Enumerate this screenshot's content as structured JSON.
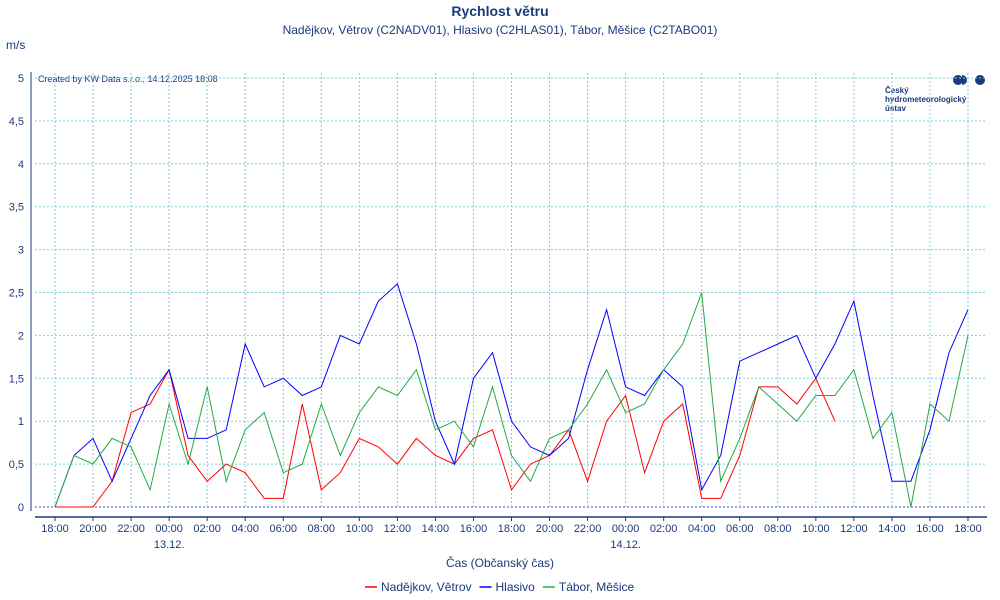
{
  "chart_data": {
    "type": "line",
    "title": "Rychlost větru",
    "subtitle": "Nadějkov, Větrov (C2NADV01), Hlasivo (C2HLAS01), Tábor, Měšice (C2TABO01)",
    "ylabel": "m/s",
    "xlabel": "Čas (Občanský čas)",
    "credit": "Created by KW Data s.r.o., 14.12.2025 18:08",
    "logo_text": [
      "Český",
      "hydrometeorologický",
      "ústav"
    ],
    "ylim": [
      0,
      5
    ],
    "y_ticks": [
      0,
      0.5,
      1,
      1.5,
      2,
      2.5,
      3,
      3.5,
      4,
      4.5,
      5
    ],
    "y_tick_labels": [
      "0",
      "0,5",
      "1",
      "1,5",
      "2",
      "2,5",
      "3",
      "3,5",
      "4",
      "4,5",
      "5"
    ],
    "x_unit": "hours since 12.12. 18:00",
    "xlim": [
      -1,
      49
    ],
    "x_tick_labels": [
      "18:00",
      "20:00",
      "22:00",
      "00:00",
      "02:00",
      "04:00",
      "06:00",
      "08:00",
      "10:00",
      "12:00",
      "14:00",
      "16:00",
      "18:00",
      "20:00",
      "22:00",
      "00:00",
      "02:00",
      "04:00",
      "06:00",
      "08:00",
      "10:00",
      "12:00",
      "14:00",
      "16:00",
      "18:00"
    ],
    "date_labels": [
      {
        "tick": 3,
        "label": "13.12."
      },
      {
        "tick": 15,
        "label": "14.12."
      }
    ],
    "grid": true,
    "legend_position": "bottom",
    "series": [
      {
        "name": "Nadějkov, Větrov",
        "color": "#ff0000",
        "values": [
          0,
          0,
          0,
          0.3,
          1.1,
          1.2,
          1.6,
          0.6,
          0.3,
          0.5,
          0.4,
          0.1,
          0.1,
          1.2,
          0.2,
          0.4,
          0.8,
          0.7,
          0.5,
          0.8,
          0.6,
          0.5,
          0.8,
          0.9,
          0.2,
          0.5,
          0.6,
          0.9,
          0.3,
          1.0,
          1.3,
          0.4,
          1.0,
          1.2,
          0.1,
          0.1,
          0.6,
          1.4,
          1.4,
          1.2,
          1.5,
          1.0
        ]
      },
      {
        "name": "Hlasivo",
        "color": "#0000ff",
        "values": [
          0,
          0.6,
          0.8,
          0.3,
          0.8,
          1.3,
          1.6,
          0.8,
          0.8,
          0.9,
          1.9,
          1.4,
          1.5,
          1.3,
          1.4,
          2.0,
          1.9,
          2.4,
          2.6,
          1.9,
          1.0,
          0.5,
          1.5,
          1.8,
          1.0,
          0.7,
          0.6,
          0.8,
          1.6,
          2.3,
          1.4,
          1.3,
          1.6,
          1.4,
          0.2,
          0.6,
          1.7,
          1.8,
          1.9,
          2.0,
          1.5,
          1.9,
          2.4,
          1.3,
          0.3,
          0.3,
          0.9,
          1.8,
          2.3
        ]
      },
      {
        "name": "Tábor, Měšice",
        "color": "#22aa44",
        "values": [
          0,
          0.6,
          0.5,
          0.8,
          0.7,
          0.2,
          1.2,
          0.5,
          1.4,
          0.3,
          0.9,
          1.1,
          0.4,
          0.5,
          1.2,
          0.6,
          1.1,
          1.4,
          1.3,
          1.6,
          0.9,
          1.0,
          0.7,
          1.4,
          0.6,
          0.3,
          0.8,
          0.9,
          1.2,
          1.6,
          1.1,
          1.2,
          1.6,
          1.9,
          2.5,
          0.3,
          0.8,
          1.4,
          1.2,
          1.0,
          1.3,
          1.3,
          1.6,
          0.8,
          1.1,
          0.0,
          1.2,
          1.0,
          2.0
        ]
      }
    ]
  }
}
